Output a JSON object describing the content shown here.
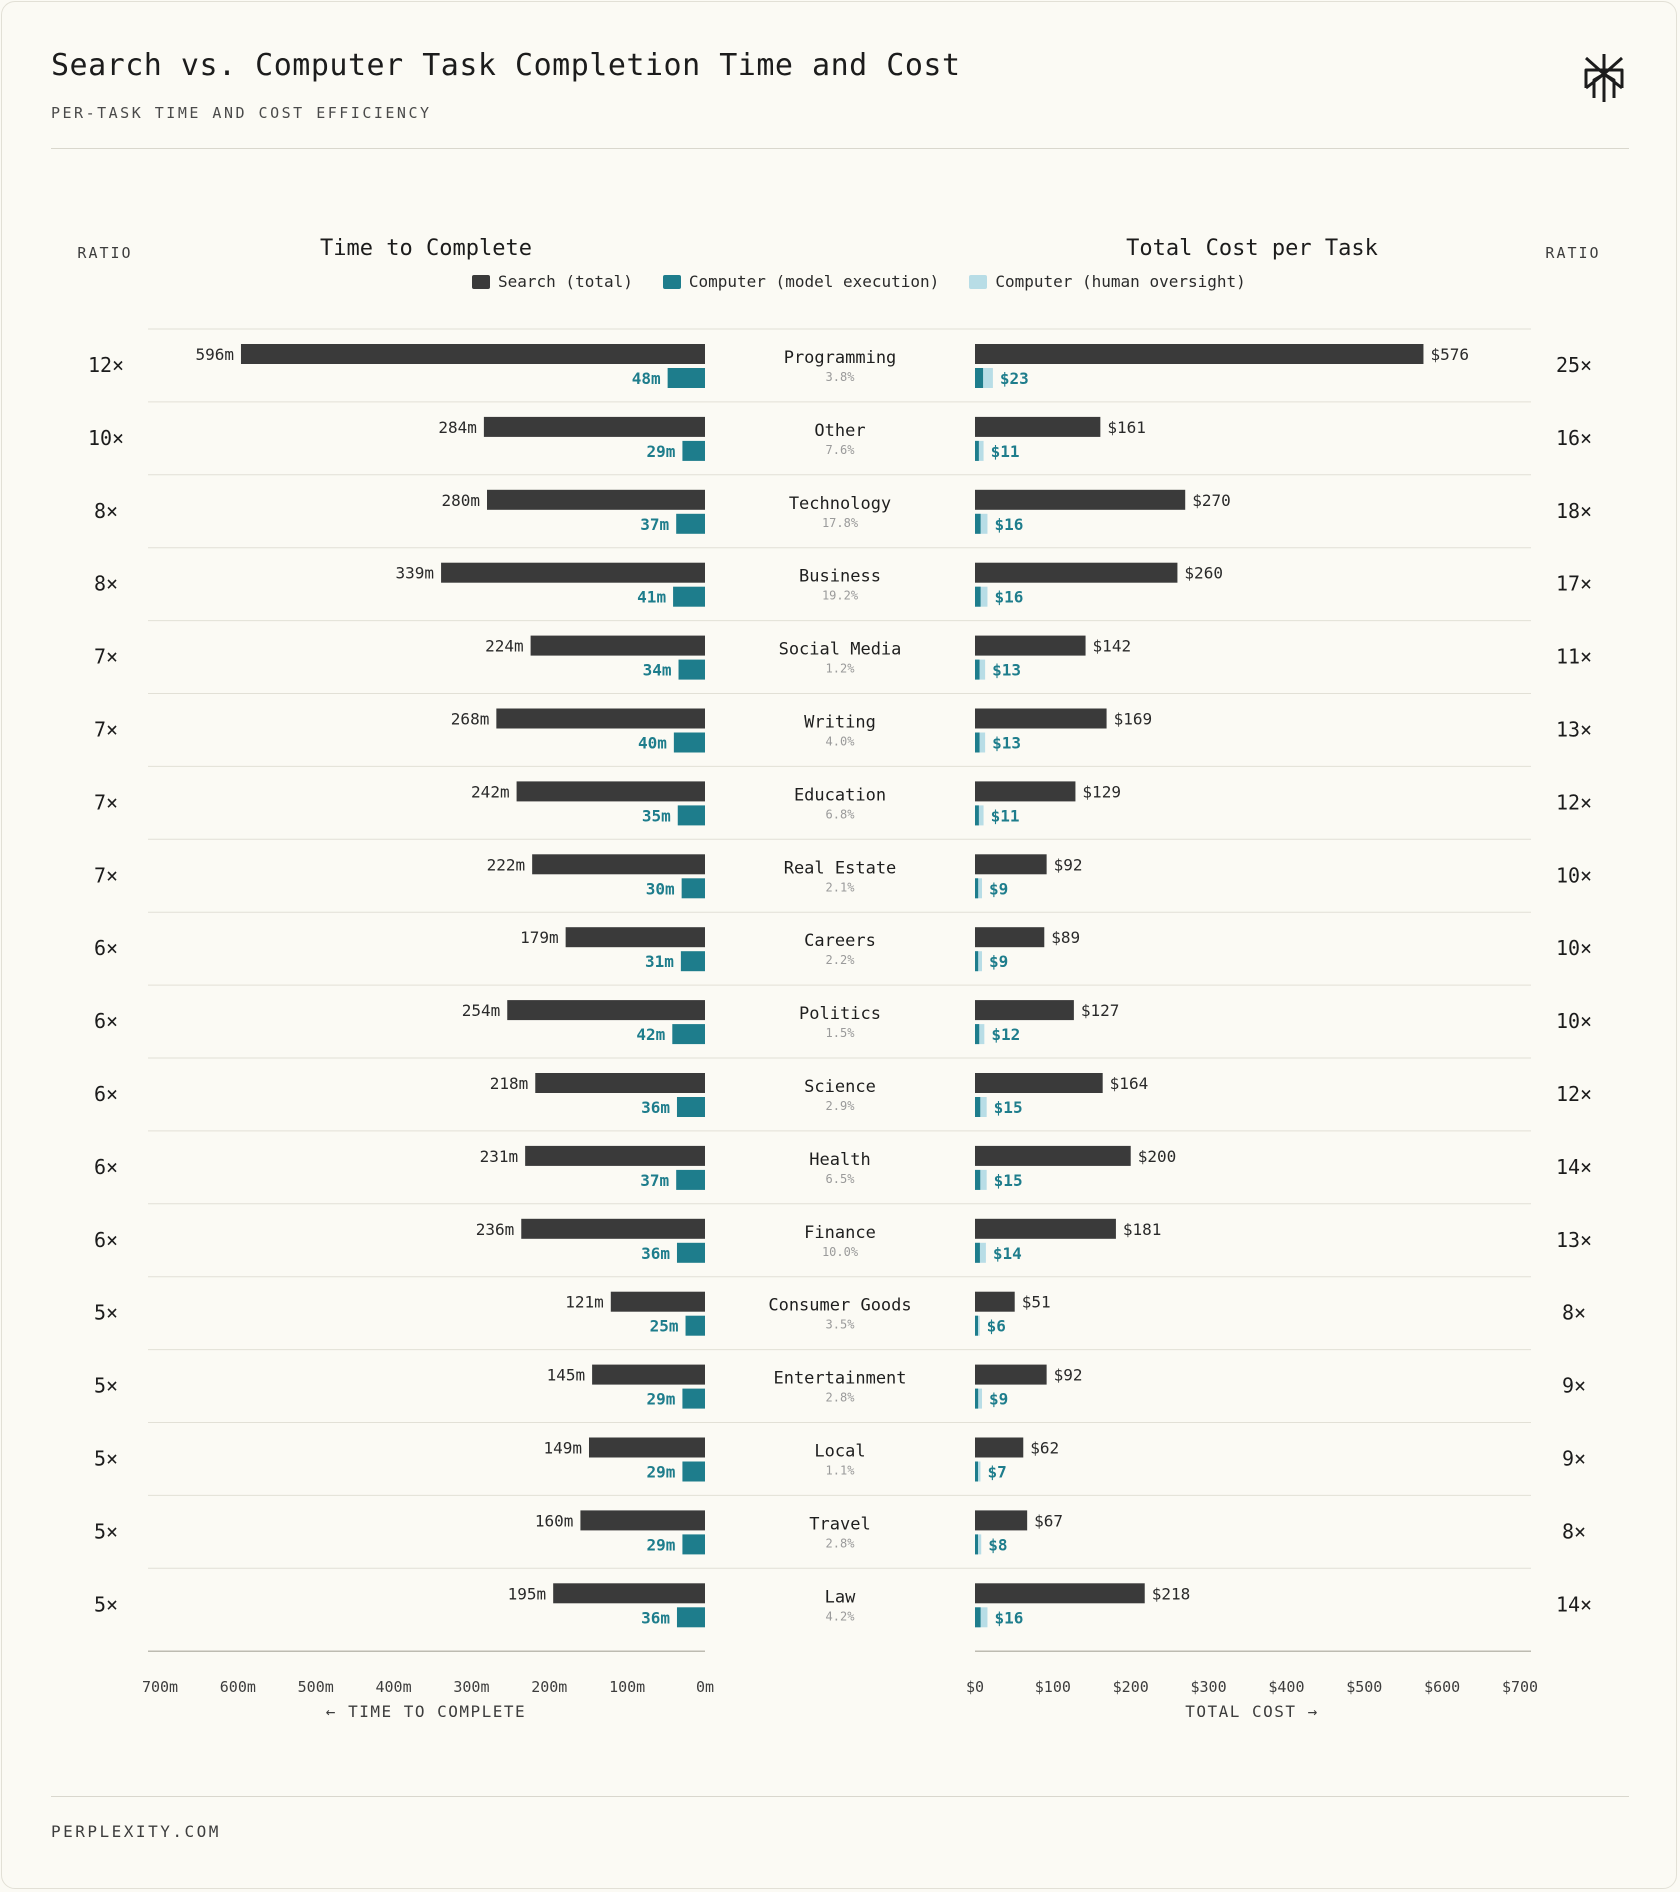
{
  "header": {
    "title": "Search vs. Computer Task Completion Time and Cost",
    "subtitle": "PER-TASK TIME AND COST EFFICIENCY"
  },
  "footer": {
    "text": "PERPLEXITY.COM"
  },
  "colors": {
    "search": "#3a3a3a",
    "computer_model": "#1e7d8c",
    "computer_human": "#b8dde6",
    "background": "#fbfaf4"
  },
  "icons": {
    "logo": "perplexity-logo-icon"
  },
  "chart_data": {
    "type": "bar",
    "panels": {
      "left": {
        "title": "Time to Complete",
        "ratio_header": "RATIO",
        "axis_direction_label": "← TIME TO COMPLETE",
        "xlim": [
          0,
          700
        ],
        "unit": "minutes",
        "ticks": [
          "700m",
          "600m",
          "500m",
          "400m",
          "300m",
          "200m",
          "100m",
          "0m"
        ]
      },
      "right": {
        "title": "Total Cost per Task",
        "ratio_header": "RATIO",
        "axis_direction_label": "TOTAL COST →",
        "xlim": [
          0,
          700
        ],
        "unit": "USD",
        "ticks": [
          "$0",
          "$100",
          "$200",
          "$300",
          "$400",
          "$500",
          "$600",
          "$700"
        ]
      }
    },
    "legend": [
      {
        "name": "Search (total)",
        "color": "#3a3a3a"
      },
      {
        "name": "Computer (model execution)",
        "color": "#1e7d8c"
      },
      {
        "name": "Computer (human oversight)",
        "color": "#b8dde6"
      }
    ],
    "categories": [
      {
        "name": "Programming",
        "share": "3.8%",
        "time_ratio": "12×",
        "search_time": 596,
        "search_time_label": "596m",
        "computer_time": 48,
        "computer_time_label": "48m",
        "search_cost": 576,
        "search_cost_label": "$576",
        "computer_cost": 23,
        "computer_cost_label": "$23",
        "cost_ratio": "25×"
      },
      {
        "name": "Other",
        "share": "7.6%",
        "time_ratio": "10×",
        "search_time": 284,
        "search_time_label": "284m",
        "computer_time": 29,
        "computer_time_label": "29m",
        "search_cost": 161,
        "search_cost_label": "$161",
        "computer_cost": 11,
        "computer_cost_label": "$11",
        "cost_ratio": "16×"
      },
      {
        "name": "Technology",
        "share": "17.8%",
        "time_ratio": "8×",
        "search_time": 280,
        "search_time_label": "280m",
        "computer_time": 37,
        "computer_time_label": "37m",
        "search_cost": 270,
        "search_cost_label": "$270",
        "computer_cost": 16,
        "computer_cost_label": "$16",
        "cost_ratio": "18×"
      },
      {
        "name": "Business",
        "share": "19.2%",
        "time_ratio": "8×",
        "search_time": 339,
        "search_time_label": "339m",
        "computer_time": 41,
        "computer_time_label": "41m",
        "search_cost": 260,
        "search_cost_label": "$260",
        "computer_cost": 16,
        "computer_cost_label": "$16",
        "cost_ratio": "17×"
      },
      {
        "name": "Social Media",
        "share": "1.2%",
        "time_ratio": "7×",
        "search_time": 224,
        "search_time_label": "224m",
        "computer_time": 34,
        "computer_time_label": "34m",
        "search_cost": 142,
        "search_cost_label": "$142",
        "computer_cost": 13,
        "computer_cost_label": "$13",
        "cost_ratio": "11×"
      },
      {
        "name": "Writing",
        "share": "4.0%",
        "time_ratio": "7×",
        "search_time": 268,
        "search_time_label": "268m",
        "computer_time": 40,
        "computer_time_label": "40m",
        "search_cost": 169,
        "search_cost_label": "$169",
        "computer_cost": 13,
        "computer_cost_label": "$13",
        "cost_ratio": "13×"
      },
      {
        "name": "Education",
        "share": "6.8%",
        "time_ratio": "7×",
        "search_time": 242,
        "search_time_label": "242m",
        "computer_time": 35,
        "computer_time_label": "35m",
        "search_cost": 129,
        "search_cost_label": "$129",
        "computer_cost": 11,
        "computer_cost_label": "$11",
        "cost_ratio": "12×"
      },
      {
        "name": "Real Estate",
        "share": "2.1%",
        "time_ratio": "7×",
        "search_time": 222,
        "search_time_label": "222m",
        "computer_time": 30,
        "computer_time_label": "30m",
        "search_cost": 92,
        "search_cost_label": "$92",
        "computer_cost": 9,
        "computer_cost_label": "$9",
        "cost_ratio": "10×"
      },
      {
        "name": "Careers",
        "share": "2.2%",
        "time_ratio": "6×",
        "search_time": 179,
        "search_time_label": "179m",
        "computer_time": 31,
        "computer_time_label": "31m",
        "search_cost": 89,
        "search_cost_label": "$89",
        "computer_cost": 9,
        "computer_cost_label": "$9",
        "cost_ratio": "10×"
      },
      {
        "name": "Politics",
        "share": "1.5%",
        "time_ratio": "6×",
        "search_time": 254,
        "search_time_label": "254m",
        "computer_time": 42,
        "computer_time_label": "42m",
        "search_cost": 127,
        "search_cost_label": "$127",
        "computer_cost": 12,
        "computer_cost_label": "$12",
        "cost_ratio": "10×"
      },
      {
        "name": "Science",
        "share": "2.9%",
        "time_ratio": "6×",
        "search_time": 218,
        "search_time_label": "218m",
        "computer_time": 36,
        "computer_time_label": "36m",
        "search_cost": 164,
        "search_cost_label": "$164",
        "computer_cost": 15,
        "computer_cost_label": "$15",
        "cost_ratio": "12×"
      },
      {
        "name": "Health",
        "share": "6.5%",
        "time_ratio": "6×",
        "search_time": 231,
        "search_time_label": "231m",
        "computer_time": 37,
        "computer_time_label": "37m",
        "search_cost": 200,
        "search_cost_label": "$200",
        "computer_cost": 15,
        "computer_cost_label": "$15",
        "cost_ratio": "14×"
      },
      {
        "name": "Finance",
        "share": "10.0%",
        "time_ratio": "6×",
        "search_time": 236,
        "search_time_label": "236m",
        "computer_time": 36,
        "computer_time_label": "36m",
        "search_cost": 181,
        "search_cost_label": "$181",
        "computer_cost": 14,
        "computer_cost_label": "$14",
        "cost_ratio": "13×"
      },
      {
        "name": "Consumer Goods",
        "share": "3.5%",
        "time_ratio": "5×",
        "search_time": 121,
        "search_time_label": "121m",
        "computer_time": 25,
        "computer_time_label": "25m",
        "search_cost": 51,
        "search_cost_label": "$51",
        "computer_cost": 6,
        "computer_cost_label": "$6",
        "cost_ratio": "8×"
      },
      {
        "name": "Entertainment",
        "share": "2.8%",
        "time_ratio": "5×",
        "search_time": 145,
        "search_time_label": "145m",
        "computer_time": 29,
        "computer_time_label": "29m",
        "search_cost": 92,
        "search_cost_label": "$92",
        "computer_cost": 9,
        "computer_cost_label": "$9",
        "cost_ratio": "9×"
      },
      {
        "name": "Local",
        "share": "1.1%",
        "time_ratio": "5×",
        "search_time": 149,
        "search_time_label": "149m",
        "computer_time": 29,
        "computer_time_label": "29m",
        "search_cost": 62,
        "search_cost_label": "$62",
        "computer_cost": 7,
        "computer_cost_label": "$7",
        "cost_ratio": "9×"
      },
      {
        "name": "Travel",
        "share": "2.8%",
        "time_ratio": "5×",
        "search_time": 160,
        "search_time_label": "160m",
        "computer_time": 29,
        "computer_time_label": "29m",
        "search_cost": 67,
        "search_cost_label": "$67",
        "computer_cost": 8,
        "computer_cost_label": "$8",
        "cost_ratio": "8×"
      },
      {
        "name": "Law",
        "share": "4.2%",
        "time_ratio": "5×",
        "search_time": 195,
        "search_time_label": "195m",
        "computer_time": 36,
        "computer_time_label": "36m",
        "search_cost": 218,
        "search_cost_label": "$218",
        "computer_cost": 16,
        "computer_cost_label": "$16",
        "cost_ratio": "14×"
      }
    ]
  }
}
